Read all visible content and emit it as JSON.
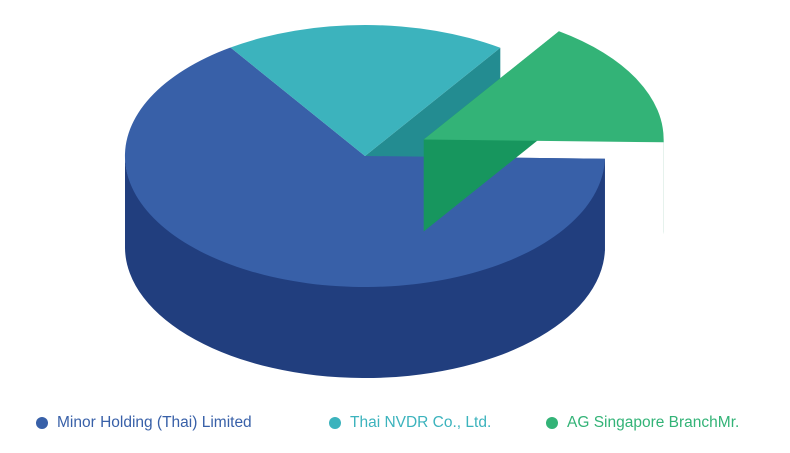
{
  "chart_data": {
    "type": "pie",
    "style": "3d-exploded",
    "title": "",
    "series": [
      {
        "name": "Minor Holding (Thai) Limited",
        "value": 65.2,
        "color": "#3860A8",
        "side_color": "#213E7E",
        "inner_color": "#2A4F95"
      },
      {
        "name": "Thai NVDR Co., Ltd.",
        "value": 19.0,
        "color": "#3CB3BD",
        "side_color": "#23898F",
        "inner_color": "#238C91"
      },
      {
        "name": "AG Singapore BranchMr.",
        "value": 15.8,
        "color": "#33B377",
        "side_color": "#017F4D",
        "inner_color": "#17965E"
      }
    ],
    "exploded": "AG Singapore BranchMr.",
    "legend_position": "bottom",
    "grid": false
  },
  "legend": {
    "items": [
      {
        "label": "Minor Holding (Thai) Limited",
        "color": "#3860A8"
      },
      {
        "label": "Thai NVDR Co., Ltd.",
        "color": "#3CB3BD"
      },
      {
        "label": "AG Singapore BranchMr.",
        "color": "#33B377"
      }
    ]
  }
}
